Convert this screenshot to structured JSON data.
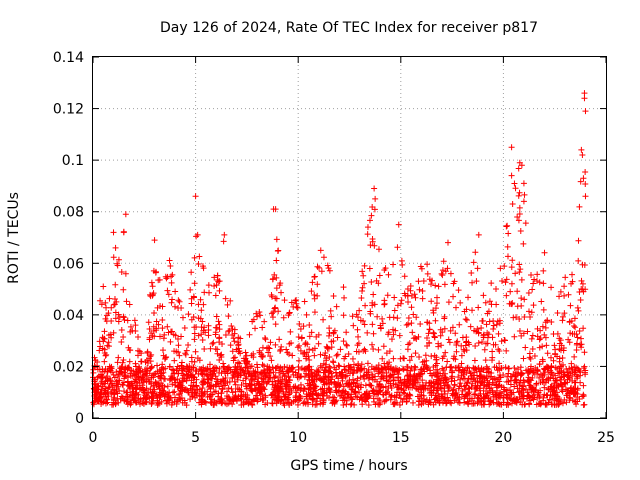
{
  "chart_data": {
    "type": "scatter",
    "title": "Day 126 of 2024, Rate Of TEC Index for receiver p817",
    "xlabel": "GPS time / hours",
    "ylabel": "ROTI / TECUs",
    "xlim": [
      0,
      25
    ],
    "ylim": [
      0,
      0.14
    ],
    "xticks": [
      0,
      5,
      10,
      15,
      20,
      25
    ],
    "xtick_labels": [
      "0",
      "5",
      "10",
      "15",
      "20",
      "25"
    ],
    "yticks": [
      0,
      0.02,
      0.04,
      0.06,
      0.08,
      0.1,
      0.12,
      0.14
    ],
    "ytick_labels": [
      "0",
      "0.02",
      "0.04",
      "0.06",
      "0.08",
      "0.1",
      "0.12",
      "0.14"
    ],
    "grid": true,
    "marker": "+",
    "color": "#ff0000",
    "x_range": [
      0,
      24
    ],
    "baseline_band": [
      0.005,
      0.02
    ],
    "envelope": [
      {
        "x": 0,
        "y": 0.02
      },
      {
        "x": 0.2,
        "y": 0.033
      },
      {
        "x": 0.4,
        "y": 0.051
      },
      {
        "x": 0.7,
        "y": 0.045
      },
      {
        "x": 1.0,
        "y": 0.072
      },
      {
        "x": 1.2,
        "y": 0.065
      },
      {
        "x": 1.5,
        "y": 0.072
      },
      {
        "x": 1.6,
        "y": 0.079
      },
      {
        "x": 1.8,
        "y": 0.05
      },
      {
        "x": 2.1,
        "y": 0.035
      },
      {
        "x": 2.5,
        "y": 0.025
      },
      {
        "x": 2.8,
        "y": 0.055
      },
      {
        "x": 3.0,
        "y": 0.069
      },
      {
        "x": 3.4,
        "y": 0.045
      },
      {
        "x": 3.7,
        "y": 0.066
      },
      {
        "x": 4.0,
        "y": 0.05
      },
      {
        "x": 4.3,
        "y": 0.045
      },
      {
        "x": 4.6,
        "y": 0.04
      },
      {
        "x": 5.0,
        "y": 0.086
      },
      {
        "x": 5.2,
        "y": 0.066
      },
      {
        "x": 5.5,
        "y": 0.057
      },
      {
        "x": 5.8,
        "y": 0.058
      },
      {
        "x": 6.1,
        "y": 0.055
      },
      {
        "x": 6.4,
        "y": 0.071
      },
      {
        "x": 6.7,
        "y": 0.045
      },
      {
        "x": 7.0,
        "y": 0.03
      },
      {
        "x": 7.4,
        "y": 0.037
      },
      {
        "x": 7.8,
        "y": 0.041
      },
      {
        "x": 8.2,
        "y": 0.043
      },
      {
        "x": 8.6,
        "y": 0.04
      },
      {
        "x": 8.9,
        "y": 0.081
      },
      {
        "x": 9.2,
        "y": 0.05
      },
      {
        "x": 9.6,
        "y": 0.045
      },
      {
        "x": 10.0,
        "y": 0.05
      },
      {
        "x": 10.4,
        "y": 0.045
      },
      {
        "x": 10.8,
        "y": 0.058
      },
      {
        "x": 11.1,
        "y": 0.065
      },
      {
        "x": 11.5,
        "y": 0.06
      },
      {
        "x": 11.8,
        "y": 0.045
      },
      {
        "x": 12.2,
        "y": 0.055
      },
      {
        "x": 12.6,
        "y": 0.04
      },
      {
        "x": 13.0,
        "y": 0.05
      },
      {
        "x": 13.4,
        "y": 0.074
      },
      {
        "x": 13.7,
        "y": 0.089
      },
      {
        "x": 14.0,
        "y": 0.06
      },
      {
        "x": 14.3,
        "y": 0.065
      },
      {
        "x": 14.6,
        "y": 0.06
      },
      {
        "x": 14.9,
        "y": 0.075
      },
      {
        "x": 15.2,
        "y": 0.055
      },
      {
        "x": 15.6,
        "y": 0.05
      },
      {
        "x": 16.0,
        "y": 0.065
      },
      {
        "x": 16.4,
        "y": 0.06
      },
      {
        "x": 16.8,
        "y": 0.05
      },
      {
        "x": 17.2,
        "y": 0.065
      },
      {
        "x": 17.6,
        "y": 0.055
      },
      {
        "x": 18.0,
        "y": 0.045
      },
      {
        "x": 18.4,
        "y": 0.06
      },
      {
        "x": 18.8,
        "y": 0.07
      },
      {
        "x": 19.2,
        "y": 0.05
      },
      {
        "x": 19.6,
        "y": 0.055
      },
      {
        "x": 20.0,
        "y": 0.06
      },
      {
        "x": 20.4,
        "y": 0.105
      },
      {
        "x": 20.8,
        "y": 0.099
      },
      {
        "x": 21.0,
        "y": 0.09
      },
      {
        "x": 21.3,
        "y": 0.06
      },
      {
        "x": 21.6,
        "y": 0.055
      },
      {
        "x": 22.0,
        "y": 0.065
      },
      {
        "x": 22.4,
        "y": 0.055
      },
      {
        "x": 22.8,
        "y": 0.05
      },
      {
        "x": 23.2,
        "y": 0.06
      },
      {
        "x": 23.6,
        "y": 0.065
      },
      {
        "x": 23.8,
        "y": 0.104
      },
      {
        "x": 23.95,
        "y": 0.126
      },
      {
        "x": 24.0,
        "y": 0.09
      }
    ],
    "notable_points": [
      {
        "x": 0.5,
        "y": 0.051
      },
      {
        "x": 1.0,
        "y": 0.072
      },
      {
        "x": 1.1,
        "y": 0.066
      },
      {
        "x": 1.5,
        "y": 0.072
      },
      {
        "x": 1.6,
        "y": 0.079
      },
      {
        "x": 3.0,
        "y": 0.069
      },
      {
        "x": 5.0,
        "y": 0.086
      },
      {
        "x": 5.1,
        "y": 0.071
      },
      {
        "x": 6.4,
        "y": 0.071
      },
      {
        "x": 8.8,
        "y": 0.081
      },
      {
        "x": 8.9,
        "y": 0.081
      },
      {
        "x": 11.1,
        "y": 0.065
      },
      {
        "x": 13.4,
        "y": 0.074
      },
      {
        "x": 13.7,
        "y": 0.089
      },
      {
        "x": 13.75,
        "y": 0.085
      },
      {
        "x": 14.9,
        "y": 0.075
      },
      {
        "x": 17.3,
        "y": 0.068
      },
      {
        "x": 18.8,
        "y": 0.071
      },
      {
        "x": 20.4,
        "y": 0.105
      },
      {
        "x": 20.4,
        "y": 0.094
      },
      {
        "x": 20.45,
        "y": 0.083
      },
      {
        "x": 20.8,
        "y": 0.099
      },
      {
        "x": 20.9,
        "y": 0.098
      },
      {
        "x": 21.0,
        "y": 0.091
      },
      {
        "x": 21.0,
        "y": 0.084
      },
      {
        "x": 23.8,
        "y": 0.104
      },
      {
        "x": 23.85,
        "y": 0.102
      },
      {
        "x": 23.9,
        "y": 0.093
      },
      {
        "x": 23.95,
        "y": 0.126
      },
      {
        "x": 23.95,
        "y": 0.124
      },
      {
        "x": 24.0,
        "y": 0.119
      },
      {
        "x": 24.0,
        "y": 0.086
      }
    ]
  }
}
